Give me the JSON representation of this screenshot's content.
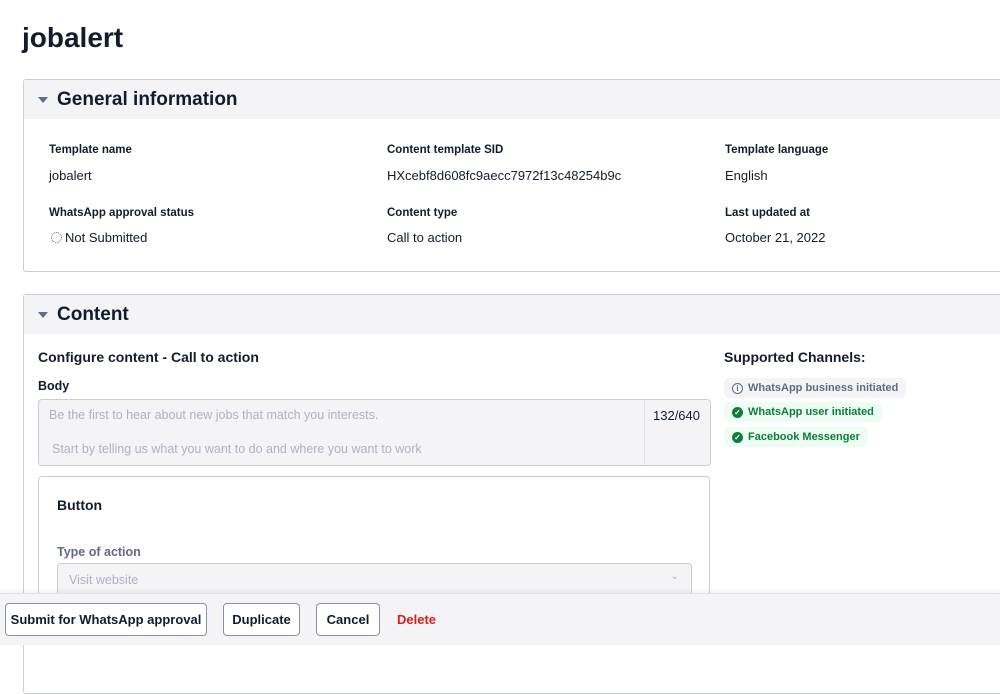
{
  "page_title": "jobalert",
  "general": {
    "title": "General information",
    "fields": [
      {
        "label": "Template name",
        "value": "jobalert"
      },
      {
        "label": "Content template SID",
        "value": "HXcebf8d608fc9aecc7972f13c48254b9c"
      },
      {
        "label": "Template language",
        "value": "English"
      },
      {
        "label": "WhatsApp approval status",
        "value": "Not Submitted"
      },
      {
        "label": "Content type",
        "value": "Call to action"
      },
      {
        "label": "Last updated at",
        "value": "October 21, 2022"
      }
    ]
  },
  "content": {
    "title": "Content",
    "configure_title": "Configure content - Call to action",
    "body_label": "Body",
    "body_line1": "Be the first to hear about new jobs that match you interests.",
    "body_line2": "Start by telling us what you want to do and where you want to work",
    "char_count": "132/640",
    "button_card_title": "Button",
    "type_of_action_label": "Type of action",
    "type_of_action_value": "Visit website",
    "channels_title": "Supported Channels:",
    "channels": [
      {
        "label": "WhatsApp business initiated",
        "status": "info",
        "icon": "info-icon"
      },
      {
        "label": "WhatsApp user initiated",
        "status": "supported",
        "icon": "check-circle-icon"
      },
      {
        "label": "Facebook Messenger",
        "status": "supported",
        "icon": "check-circle-icon"
      }
    ]
  },
  "footer": {
    "submit": "Submit for WhatsApp approval",
    "duplicate": "Duplicate",
    "cancel": "Cancel",
    "delete": "Delete"
  },
  "colors": {
    "success": "#0e7c3a",
    "danger": "#d61f1f"
  }
}
